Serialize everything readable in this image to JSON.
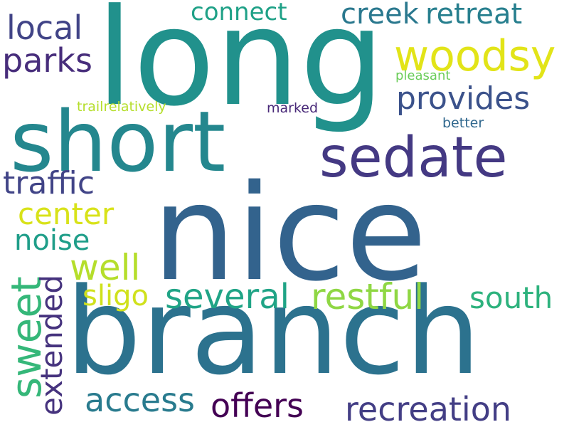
{
  "words": {
    "nice": {
      "text": "nice",
      "color": "#33638d"
    },
    "long": {
      "text": "long",
      "color": "#21918c"
    },
    "branch": {
      "text": "branch",
      "color": "#2c728e"
    },
    "short": {
      "text": "short",
      "color": "#24878e"
    },
    "sedate": {
      "text": "sedate",
      "color": "#443983"
    },
    "woodsy": {
      "text": "woodsy",
      "color": "#e2e418"
    },
    "retreat": {
      "text": "retreat",
      "color": "#277f8e"
    },
    "creek": {
      "text": "creek",
      "color": "#2a788e"
    },
    "provides": {
      "text": "provides",
      "color": "#3b528b"
    },
    "local": {
      "text": "local",
      "color": "#414487"
    },
    "parks": {
      "text": "parks",
      "color": "#472d7b"
    },
    "connect": {
      "text": "connect",
      "color": "#1fa187"
    },
    "traffic": {
      "text": "traffic",
      "color": "#414487"
    },
    "center": {
      "text": "center",
      "color": "#d8e219"
    },
    "noise": {
      "text": "noise",
      "color": "#1f9e89"
    },
    "well": {
      "text": "well",
      "color": "#b5de2b"
    },
    "sweet": {
      "text": "sweet",
      "color": "#35b779"
    },
    "extended": {
      "text": "extended",
      "color": "#46337e"
    },
    "sligo": {
      "text": "sligo",
      "color": "#d0e11c"
    },
    "several": {
      "text": "several",
      "color": "#20a486"
    },
    "restful": {
      "text": "restful",
      "color": "#8fd744"
    },
    "south": {
      "text": "south",
      "color": "#2db27d"
    },
    "access": {
      "text": "access",
      "color": "#297b8e"
    },
    "offers": {
      "text": "offers",
      "color": "#440154"
    },
    "recreation": {
      "text": "recreation",
      "color": "#433e85"
    },
    "trailrelatively": {
      "text": "trailrelatively",
      "color": "#b5de2b"
    },
    "marked": {
      "text": "marked",
      "color": "#482878"
    },
    "pleasant": {
      "text": "pleasant",
      "color": "#6ccd5a"
    },
    "better": {
      "text": "better",
      "color": "#31688e"
    }
  }
}
